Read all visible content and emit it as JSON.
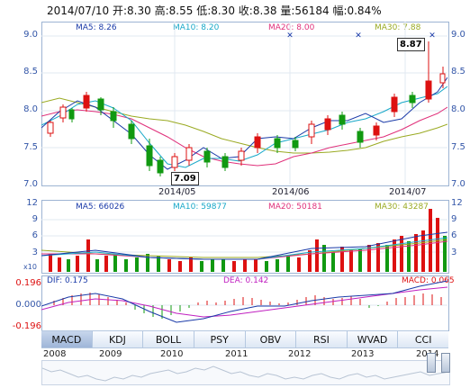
{
  "header": {
    "date": "2014/07/10",
    "open_label": "开:",
    "open": "8.30",
    "high_label": "高:",
    "high": "8.55",
    "low_label": "低:",
    "low": "8.30",
    "close_label": "收:",
    "close": "8.38",
    "volume_label": "量:",
    "volume": "56184",
    "change_label": "幅:",
    "change": "0.84%"
  },
  "price_panel": {
    "ma5": "MA5: 8.26",
    "ma10": "MA10: 8.20",
    "ma20": "MA20: 8.00",
    "ma30": "MA30: 7.88",
    "y_left": [
      "9.0",
      "8.5",
      "8.0",
      "7.5",
      "7.0"
    ],
    "y_right": [
      "9.0",
      "8.5",
      "8.0",
      "7.5",
      "7.0"
    ],
    "dates": [
      "2014/05",
      "2014/06",
      "2014/07"
    ],
    "high_callout": "8.87",
    "low_callout": "7.09"
  },
  "volume_panel": {
    "ma5": "MA5: 66026",
    "ma10": "MA10: 59877",
    "ma20": "MA20: 50181",
    "ma30": "MA30: 43287",
    "y_left": [
      "12",
      "9",
      "6",
      "3"
    ],
    "y_right": [
      "12",
      "9",
      "6",
      "3"
    ],
    "unit": "x10"
  },
  "macd_panel": {
    "dif": "DIF: 0.175",
    "dea": "DEA: 0.142",
    "macd": "MACD: 0.065",
    "y_left": [
      "0.196",
      "0.000",
      "-0.196"
    ]
  },
  "tabs": [
    "MACD",
    "KDJ",
    "BOLL",
    "PSY",
    "OBV",
    "RSI",
    "WVAD",
    "CCI"
  ],
  "overview": {
    "years": [
      "2008",
      "2009",
      "2010",
      "2011",
      "2012",
      "2013",
      "2014"
    ]
  },
  "colors": {
    "up": "#dd1111",
    "down": "#119911",
    "ma5": "#1a3aa8",
    "ma10": "#18a8c8",
    "ma20": "#e0307a",
    "ma30": "#9aaa22",
    "axis_text": "#3356a8"
  },
  "chart_data": {
    "type": "candlestick",
    "x_labels": [
      "2014/05",
      "2014/06",
      "2014/07"
    ],
    "ylim": [
      7.0,
      9.0
    ],
    "annotations": [
      {
        "text": "8.87"
      },
      {
        "text": "7.09"
      }
    ]
  }
}
